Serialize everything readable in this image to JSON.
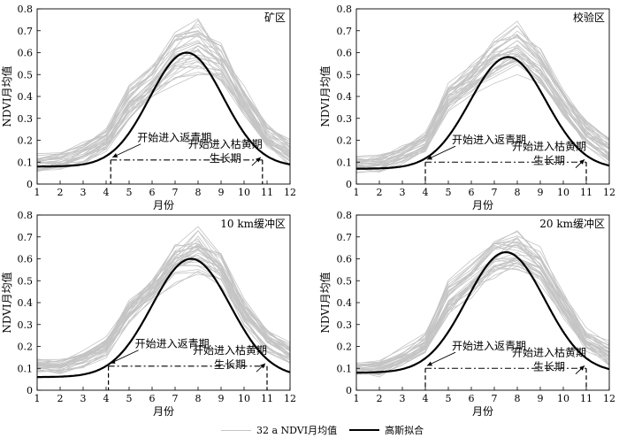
{
  "chart_data": [
    {
      "type": "line",
      "title": "矿区",
      "xlabel": "月份",
      "ylabel": "NDVI月均值",
      "xlim": [
        1,
        12
      ],
      "ylim": [
        0,
        0.8
      ],
      "xticks": [
        1,
        2,
        3,
        4,
        5,
        6,
        7,
        8,
        9,
        10,
        11,
        12
      ],
      "yticks": [
        0,
        0.1,
        0.2,
        0.3,
        0.4,
        0.5,
        0.6,
        0.7,
        0.8
      ],
      "fit": {
        "name": "高斯拟合",
        "base": 0.08,
        "amp": 0.52,
        "peak_month": 7.5,
        "sigma": 1.6
      },
      "green_up_month": 4.2,
      "senescence_month": 10.8,
      "season_line_ndvi": 0.11,
      "gray_band": {
        "low_ndvi": [
          0.05,
          0.06,
          0.09,
          0.14,
          0.28,
          0.38,
          0.45,
          0.5,
          0.45,
          0.3,
          0.16,
          0.08
        ],
        "high_ndvi": [
          0.14,
          0.16,
          0.2,
          0.26,
          0.46,
          0.55,
          0.73,
          0.76,
          0.65,
          0.45,
          0.28,
          0.22
        ]
      },
      "annotations": {
        "green_up": "开始进入返青期",
        "senescence": "开始进入枯黄期",
        "season": "生长期"
      }
    },
    {
      "type": "line",
      "title": "校验区",
      "xlabel": "月份",
      "ylabel": "NDVI月均值",
      "xlim": [
        1,
        12
      ],
      "ylim": [
        0,
        0.8
      ],
      "xticks": [
        1,
        2,
        3,
        4,
        5,
        6,
        7,
        8,
        9,
        10,
        11,
        12
      ],
      "yticks": [
        0,
        0.1,
        0.2,
        0.3,
        0.4,
        0.5,
        0.6,
        0.7,
        0.8
      ],
      "fit": {
        "name": "高斯拟合",
        "base": 0.07,
        "amp": 0.51,
        "peak_month": 7.6,
        "sigma": 1.65
      },
      "green_up_month": 4.0,
      "senescence_month": 11.0,
      "season_line_ndvi": 0.1,
      "gray_band": {
        "low_ndvi": [
          0.05,
          0.05,
          0.09,
          0.14,
          0.33,
          0.4,
          0.46,
          0.5,
          0.45,
          0.3,
          0.16,
          0.08
        ],
        "high_ndvi": [
          0.13,
          0.14,
          0.18,
          0.24,
          0.47,
          0.56,
          0.68,
          0.76,
          0.63,
          0.45,
          0.3,
          0.22
        ]
      },
      "annotations": {
        "green_up": "开始进入返青期",
        "senescence": "开始进入枯黄期",
        "season": "生长期"
      }
    },
    {
      "type": "line",
      "title": "10 km缓冲区",
      "xlabel": "月份",
      "ylabel": "NDVI月均值",
      "xlim": [
        1,
        12
      ],
      "ylim": [
        0,
        0.8
      ],
      "xticks": [
        1,
        2,
        3,
        4,
        5,
        6,
        7,
        8,
        9,
        10,
        11,
        12
      ],
      "yticks": [
        0,
        0.1,
        0.2,
        0.3,
        0.4,
        0.5,
        0.6,
        0.7,
        0.8
      ],
      "fit": {
        "name": "高斯拟合",
        "base": 0.06,
        "amp": 0.54,
        "peak_month": 7.7,
        "sigma": 1.7
      },
      "green_up_month": 4.1,
      "senescence_month": 11.0,
      "season_line_ndvi": 0.11,
      "gray_band": {
        "low_ndvi": [
          0.07,
          0.06,
          0.09,
          0.14,
          0.28,
          0.37,
          0.47,
          0.5,
          0.45,
          0.28,
          0.15,
          0.1
        ],
        "high_ndvi": [
          0.15,
          0.15,
          0.19,
          0.25,
          0.43,
          0.53,
          0.69,
          0.76,
          0.64,
          0.44,
          0.3,
          0.23
        ]
      },
      "annotations": {
        "green_up": "开始进入返青期",
        "senescence": "开始进入枯黄期",
        "season": "生长期"
      }
    },
    {
      "type": "line",
      "title": "20 km缓冲区",
      "xlabel": "月份",
      "ylabel": "NDVI月均值",
      "xlim": [
        1,
        12
      ],
      "ylim": [
        0,
        0.8
      ],
      "xticks": [
        1,
        2,
        3,
        4,
        5,
        6,
        7,
        8,
        9,
        10,
        11,
        12
      ],
      "yticks": [
        0,
        0.1,
        0.2,
        0.3,
        0.4,
        0.5,
        0.6,
        0.7,
        0.8
      ],
      "fit": {
        "name": "高斯拟合",
        "base": 0.08,
        "amp": 0.55,
        "peak_month": 7.5,
        "sigma": 1.7
      },
      "green_up_month": 4.0,
      "senescence_month": 11.0,
      "season_line_ndvi": 0.1,
      "gray_band": {
        "low_ndvi": [
          0.06,
          0.06,
          0.1,
          0.16,
          0.33,
          0.42,
          0.5,
          0.52,
          0.47,
          0.31,
          0.17,
          0.1
        ],
        "high_ndvi": [
          0.14,
          0.15,
          0.2,
          0.27,
          0.52,
          0.6,
          0.72,
          0.78,
          0.66,
          0.47,
          0.3,
          0.23
        ]
      },
      "annotations": {
        "green_up": "开始进入返青期",
        "senescence": "开始进入枯黄期",
        "season": "生长期"
      }
    }
  ],
  "legend": {
    "gray_label": "32 a NDVI月均值",
    "fit_label": "高斯拟合",
    "gray_color": "#c4c4c4",
    "fit_color": "#000000"
  }
}
